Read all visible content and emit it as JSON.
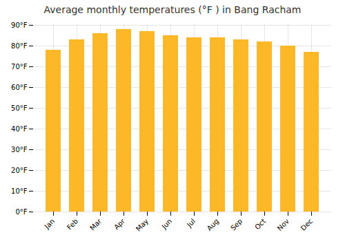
{
  "chart_data": {
    "type": "bar",
    "title": "Average monthly temperatures (°F ) in Bang Racham",
    "categories": [
      "Jan",
      "Feb",
      "Mar",
      "Apr",
      "May",
      "Jun",
      "Jul",
      "Aug",
      "Sep",
      "Oct",
      "Nov",
      "Dec"
    ],
    "values": [
      78,
      83,
      86,
      88,
      87,
      85,
      84,
      84,
      83,
      82,
      80,
      77
    ],
    "color": "#FDB827",
    "ylim": [
      0,
      90
    ],
    "yticks": [
      {
        "value": 0,
        "label": "0°F"
      },
      {
        "value": 10,
        "label": "10°F"
      },
      {
        "value": 20,
        "label": "20°F"
      },
      {
        "value": 30,
        "label": "30°F"
      },
      {
        "value": 40,
        "label": "40°F"
      },
      {
        "value": 50,
        "label": "50°F"
      },
      {
        "value": 60,
        "label": "60°F"
      },
      {
        "value": 70,
        "label": "70°F"
      },
      {
        "value": 80,
        "label": "80°F"
      },
      {
        "value": 90,
        "label": "90°F"
      }
    ],
    "grid": true
  }
}
